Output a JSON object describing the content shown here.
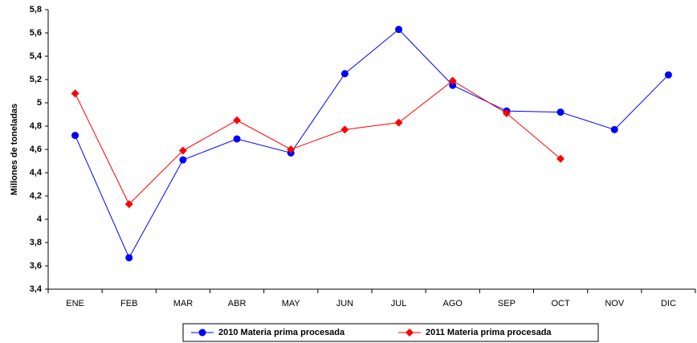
{
  "chart_data": {
    "type": "line",
    "ylabel": "Millones de toneladas",
    "categories": [
      "ENE",
      "FEB",
      "MAR",
      "ABR",
      "MAY",
      "JUN",
      "JUL",
      "AGO",
      "SEP",
      "OCT",
      "NOV",
      "DIC"
    ],
    "series": [
      {
        "name": "2010 Materia prima procesada",
        "color": "#0000ff",
        "marker": "circle",
        "values": [
          4.72,
          3.67,
          4.51,
          4.69,
          4.57,
          5.25,
          5.63,
          5.15,
          4.93,
          4.92,
          4.77,
          5.24
        ]
      },
      {
        "name": "2011 Materia prima procesada",
        "color": "#ff0000",
        "marker": "diamond",
        "values": [
          5.08,
          4.13,
          4.59,
          4.85,
          4.6,
          4.77,
          4.83,
          5.19,
          4.91,
          4.52,
          null,
          null
        ]
      }
    ],
    "ylim": [
      3.4,
      5.8
    ],
    "yticks": [
      {
        "value": 3.4,
        "label": "3,4"
      },
      {
        "value": 3.6,
        "label": "3,6"
      },
      {
        "value": 3.8,
        "label": "3,8"
      },
      4,
      {
        "value": 4.2,
        "label": "4,2"
      },
      {
        "value": 4.4,
        "label": "4,4"
      },
      {
        "value": 4.6,
        "label": "4,6"
      },
      {
        "value": 4.8,
        "label": "4,8"
      },
      5,
      {
        "value": 5.2,
        "label": "5,2"
      },
      {
        "value": 5.4,
        "label": "5,4"
      },
      {
        "value": 5.6,
        "label": "5,6"
      },
      {
        "value": 5.8,
        "label": "5,8"
      }
    ],
    "legend": "bottom"
  }
}
